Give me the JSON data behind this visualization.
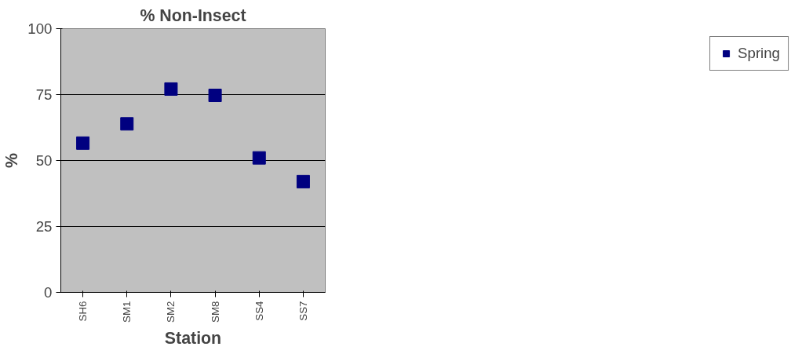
{
  "chart_data": {
    "type": "scatter",
    "title": "% Non-Insect",
    "xlabel": "Station",
    "ylabel": "%",
    "categories": [
      "SH6",
      "SM1",
      "SM2",
      "SM8",
      "SS4",
      "SS7"
    ],
    "series": [
      {
        "name": "Spring",
        "color": "#000080",
        "values": [
          56.6,
          63.9,
          77.1,
          74.7,
          51.0,
          42.0
        ]
      }
    ],
    "ylim": [
      0,
      100
    ],
    "yticks": [
      0,
      25,
      50,
      75,
      100
    ],
    "grid": "y",
    "legend": "right",
    "marker": "square"
  }
}
